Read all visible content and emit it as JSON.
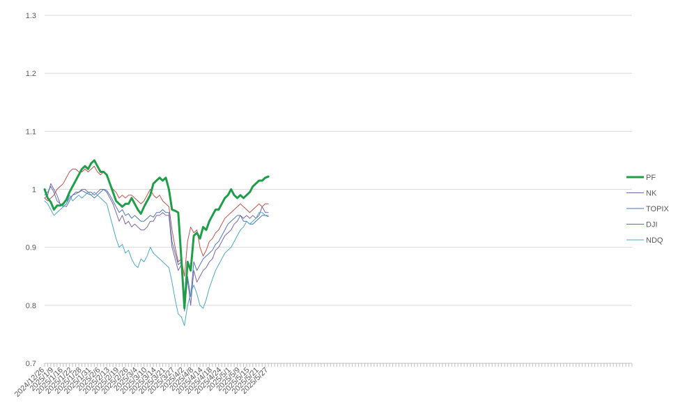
{
  "chart_data": {
    "type": "line",
    "title": "",
    "xlabel": "",
    "ylabel": "",
    "ylim": [
      0.7,
      1.3
    ],
    "yticks": [
      0.7,
      0.8,
      0.9,
      1,
      1.1,
      1.2,
      1.3
    ],
    "ytick_labels": [
      "0.7",
      "0.8",
      "0.9",
      "1",
      "1.1",
      "1.2",
      "1.3"
    ],
    "grid": true,
    "legend_position": "right",
    "x_labels": [
      "2024/12/26",
      "2025/1/9",
      "2025/1/16",
      "2025/1/22",
      "2025/1/28",
      "2025/1/31",
      "2025/2/6",
      "2025/2/13",
      "2025/2/19",
      "2025/2/26",
      "2025/3/4",
      "2025/3/10",
      "2025/3/14",
      "2025/3/21",
      "2025/3/27",
      "2025/4/2",
      "2025/4/8",
      "2025/4/14",
      "2025/4/18",
      "2025/4/24",
      "2025/5/1",
      "2025/5/9",
      "2025/5/15",
      "2025/5/21",
      "2025/5/27"
    ],
    "x_label_index": [
      0,
      3,
      6,
      9,
      12,
      15,
      18,
      21,
      24,
      27,
      30,
      33,
      36,
      39,
      42,
      45,
      48,
      51,
      54,
      57,
      60,
      63,
      66,
      69,
      72
    ],
    "x_total_categories": 190,
    "series": [
      {
        "name": "PF",
        "color": "#1e9e48",
        "width": 3,
        "values": [
          1.0,
          0.985,
          0.978,
          0.965,
          0.972,
          0.972,
          0.975,
          0.982,
          0.995,
          1.005,
          1.015,
          1.025,
          1.035,
          1.04,
          1.035,
          1.045,
          1.05,
          1.04,
          1.03,
          1.03,
          1.025,
          1.01,
          0.995,
          0.98,
          0.975,
          0.97,
          0.975,
          0.975,
          0.985,
          0.975,
          0.965,
          0.958,
          0.97,
          0.98,
          0.99,
          1.01,
          1.015,
          1.02,
          1.015,
          1.02,
          1.0,
          0.965,
          0.963,
          0.96,
          0.88,
          0.795,
          0.875,
          0.86,
          0.92,
          0.925,
          0.915,
          0.935,
          0.93,
          0.945,
          0.955,
          0.965,
          0.965,
          0.975,
          0.985,
          0.99,
          1.0,
          0.99,
          0.985,
          0.99,
          0.985,
          0.99,
          0.995,
          1.005,
          1.01,
          1.015,
          1.015,
          1.02,
          1.022
        ]
      },
      {
        "name": "NK",
        "color": "#7e62a6",
        "width": 1,
        "values": [
          0.985,
          0.99,
          1.01,
          1.0,
          0.99,
          0.975,
          0.97,
          0.975,
          0.985,
          0.99,
          0.995,
          0.995,
          1.0,
          1.0,
          0.995,
          0.995,
          0.99,
          0.995,
          1.0,
          1.0,
          0.995,
          0.985,
          0.975,
          0.96,
          0.945,
          0.955,
          0.94,
          0.945,
          0.935,
          0.94,
          0.935,
          0.93,
          0.93,
          0.935,
          0.945,
          0.945,
          0.955,
          0.955,
          0.96,
          0.955,
          0.955,
          0.9,
          0.88,
          0.86,
          0.87,
          0.79,
          0.845,
          0.8,
          0.86,
          0.84,
          0.85,
          0.86,
          0.865,
          0.875,
          0.88,
          0.895,
          0.9,
          0.91,
          0.92,
          0.925,
          0.93,
          0.94,
          0.945,
          0.955,
          0.95,
          0.955,
          0.95,
          0.955,
          0.95,
          0.955,
          0.97,
          0.96,
          0.96
        ]
      },
      {
        "name": "TOPIX",
        "color": "#4a76b8",
        "width": 1,
        "values": [
          0.99,
          0.995,
          1.005,
          0.995,
          0.98,
          0.975,
          0.972,
          0.97,
          0.98,
          0.99,
          0.992,
          0.995,
          0.998,
          0.995,
          0.992,
          0.99,
          0.985,
          0.99,
          0.995,
          1.0,
          0.998,
          0.99,
          0.98,
          0.97,
          0.96,
          0.965,
          0.955,
          0.958,
          0.95,
          0.955,
          0.95,
          0.945,
          0.945,
          0.95,
          0.955,
          0.952,
          0.96,
          0.96,
          0.965,
          0.96,
          0.96,
          0.91,
          0.89,
          0.87,
          0.875,
          0.8,
          0.85,
          0.815,
          0.875,
          0.86,
          0.87,
          0.88,
          0.885,
          0.89,
          0.895,
          0.905,
          0.91,
          0.92,
          0.93,
          0.94,
          0.945,
          0.95,
          0.955,
          0.955,
          0.945,
          0.945,
          0.94,
          0.94,
          0.945,
          0.95,
          0.955,
          0.955,
          0.953
        ]
      },
      {
        "name": "DJI",
        "color": "#c0504d",
        "width": 1,
        "values": [
          0.985,
          0.98,
          0.985,
          0.99,
          1.0,
          1.005,
          1.01,
          1.02,
          1.03,
          1.035,
          1.035,
          1.03,
          1.03,
          1.035,
          1.03,
          1.035,
          1.04,
          1.03,
          1.025,
          1.03,
          1.025,
          1.01,
          1.0,
          0.995,
          0.985,
          0.99,
          0.985,
          0.99,
          0.99,
          0.985,
          0.98,
          0.975,
          0.98,
          0.99,
          1.0,
          0.99,
          0.985,
          0.99,
          0.98,
          0.975,
          0.97,
          0.93,
          0.9,
          0.875,
          0.88,
          0.85,
          0.91,
          0.935,
          0.925,
          0.93,
          0.9,
          0.885,
          0.895,
          0.91,
          0.915,
          0.925,
          0.93,
          0.94,
          0.95,
          0.955,
          0.96,
          0.965,
          0.97,
          0.975,
          0.97,
          0.965,
          0.96,
          0.965,
          0.97,
          0.975,
          0.97,
          0.975,
          0.975
        ]
      },
      {
        "name": "NDQ",
        "color": "#4ba8c6",
        "width": 1,
        "values": [
          0.98,
          0.975,
          0.965,
          0.955,
          0.96,
          0.965,
          0.97,
          0.975,
          0.99,
          0.98,
          0.985,
          0.99,
          0.985,
          0.99,
          0.995,
          0.99,
          0.995,
          0.99,
          0.985,
          0.98,
          0.975,
          0.955,
          0.935,
          0.915,
          0.9,
          0.905,
          0.89,
          0.895,
          0.88,
          0.87,
          0.865,
          0.88,
          0.875,
          0.885,
          0.9,
          0.89,
          0.885,
          0.88,
          0.875,
          0.87,
          0.865,
          0.84,
          0.81,
          0.785,
          0.78,
          0.765,
          0.8,
          0.82,
          0.835,
          0.82,
          0.8,
          0.795,
          0.81,
          0.83,
          0.845,
          0.86,
          0.87,
          0.88,
          0.89,
          0.895,
          0.9,
          0.91,
          0.92,
          0.93,
          0.935,
          0.945,
          0.94,
          0.945,
          0.95,
          0.96,
          0.96,
          0.955,
          0.955
        ]
      }
    ]
  }
}
